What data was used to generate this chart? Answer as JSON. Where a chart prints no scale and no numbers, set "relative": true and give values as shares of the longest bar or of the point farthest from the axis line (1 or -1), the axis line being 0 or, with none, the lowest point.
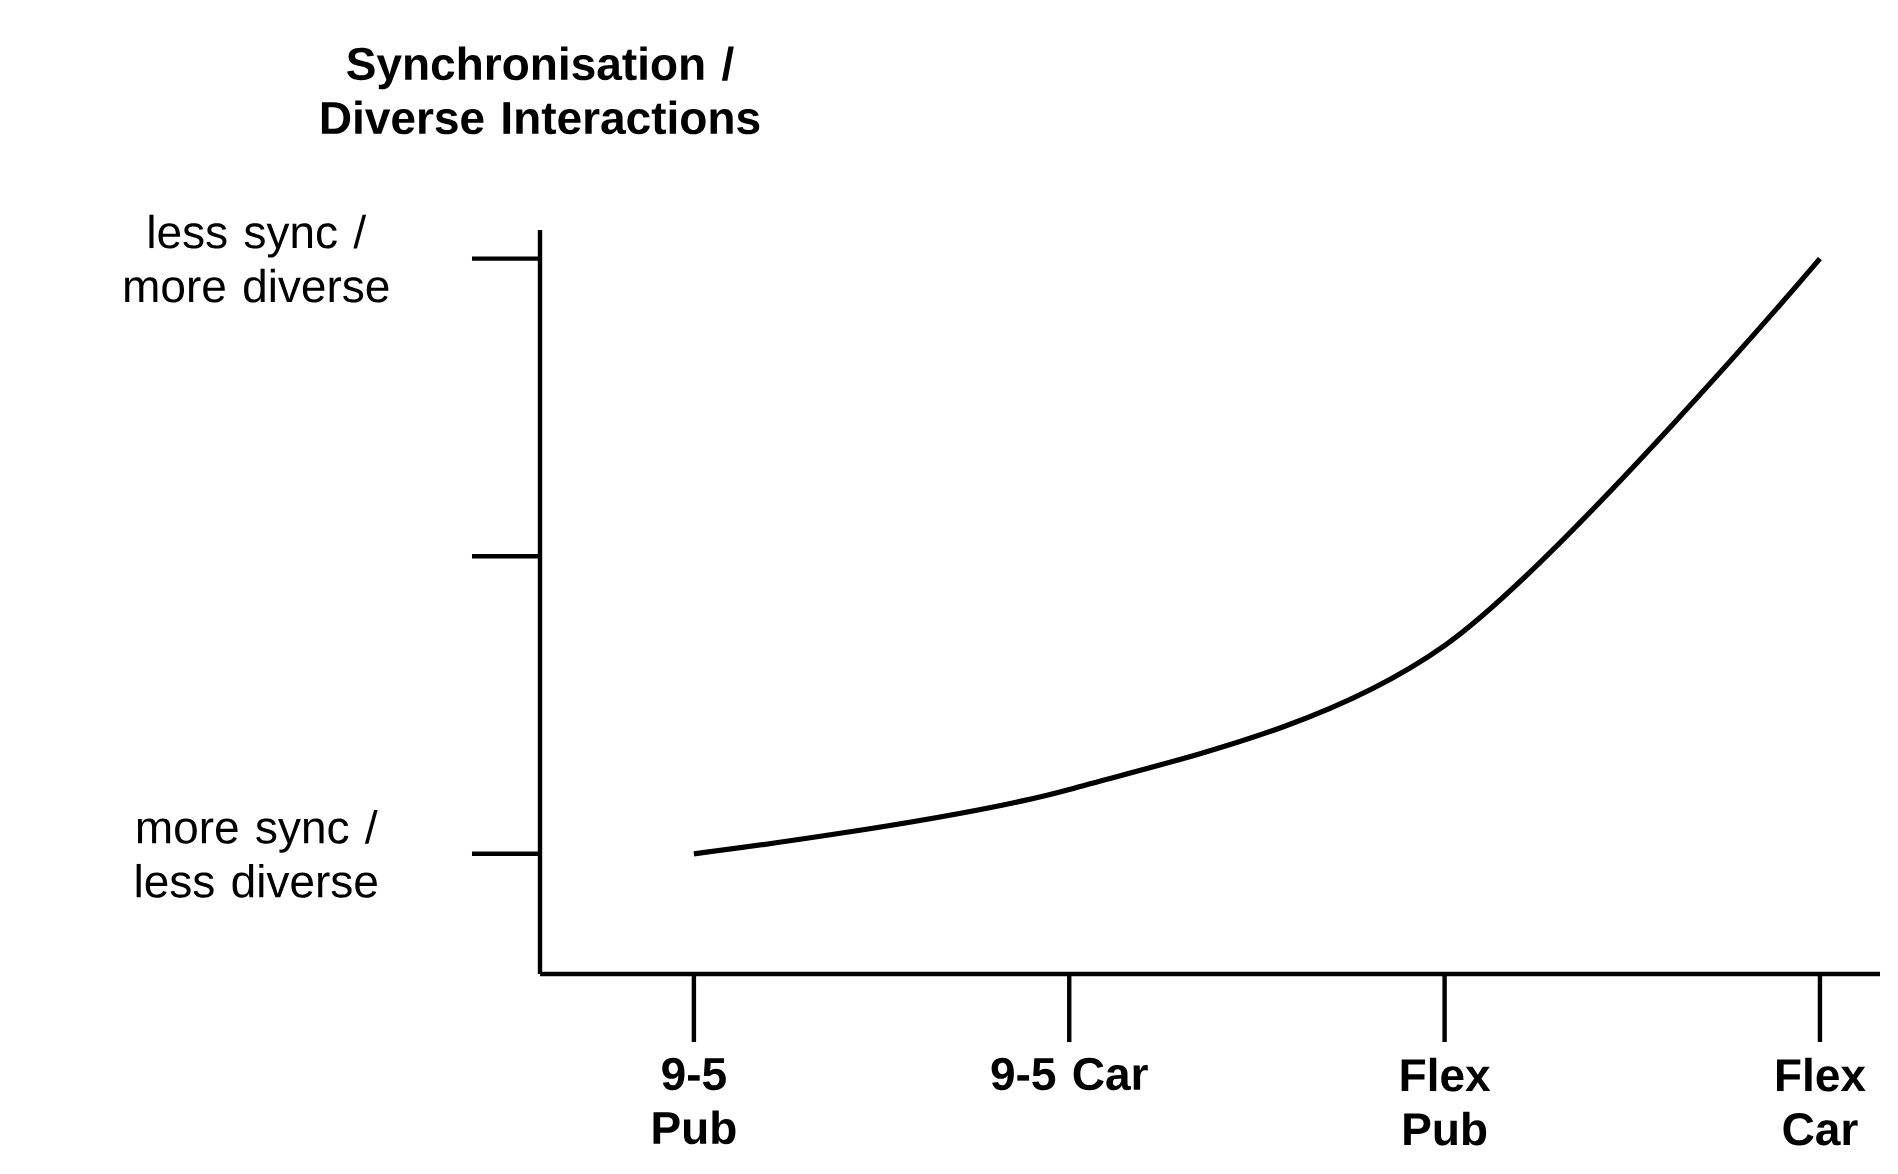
{
  "chart_data": {
    "type": "line",
    "ylabel": "Synchronisation / Diverse Interactions",
    "categories": [
      "9-5 Pub",
      "9-5 Car",
      "Flex Pub",
      "Flex Car"
    ],
    "series": [
      {
        "color": "#000000",
        "values": [
          0.168,
          0.258,
          0.459,
          1
        ]
      }
    ],
    "relative": true,
    "annotations": [
      "more sync / less diverse",
      "less sync / more diverse"
    ],
    "grid": false
  }
}
